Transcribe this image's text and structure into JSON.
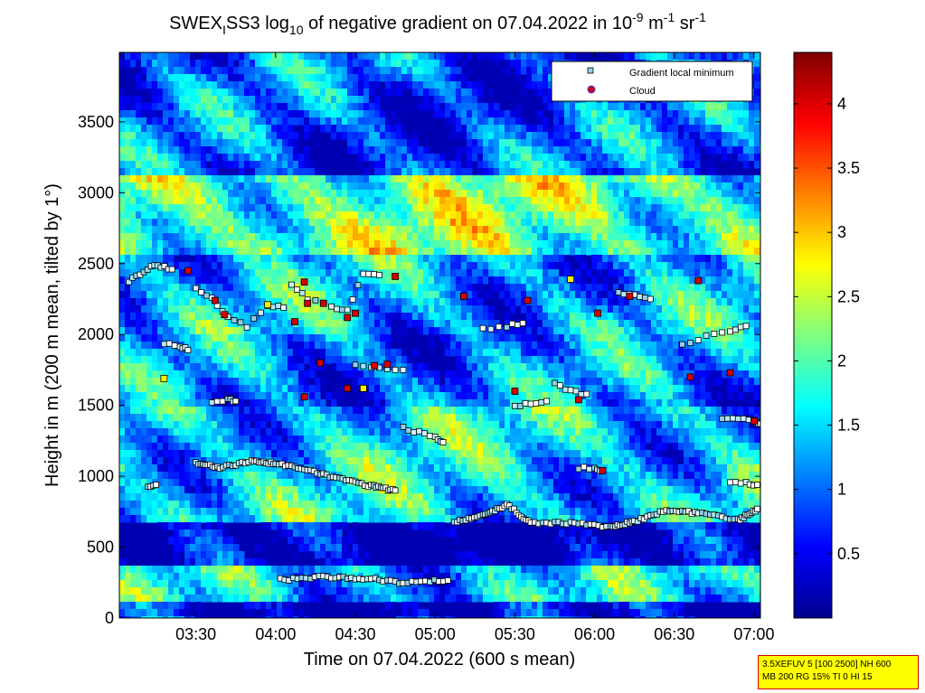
{
  "chart_data": {
    "type": "heatmap",
    "title_parts": {
      "a": "SWEX",
      "a_sub": "I",
      "b": "SS3 log",
      "b_sub": "10",
      "c": " of negative gradient on 07.04.2022 in 10",
      "c_sup1": "-9",
      "d": " m",
      "d_sup": "-1",
      "e": " sr",
      "e_sup": "-1"
    },
    "xlabel": "Time on 07.04.2022 (600 s mean)",
    "ylabel": "Height in m (200 m mean, tilted by 1°)",
    "xticks": [
      {
        "v": 3.5,
        "label": "03:30"
      },
      {
        "v": 4.0,
        "label": "04:00"
      },
      {
        "v": 4.5,
        "label": "04:30"
      },
      {
        "v": 5.0,
        "label": "05:00"
      },
      {
        "v": 5.5,
        "label": "05:30"
      },
      {
        "v": 6.0,
        "label": "06:00"
      },
      {
        "v": 6.5,
        "label": "06:30"
      },
      {
        "v": 7.0,
        "label": "07:00"
      }
    ],
    "yticks": [
      {
        "v": 0,
        "label": "0"
      },
      {
        "v": 500,
        "label": "500"
      },
      {
        "v": 1000,
        "label": "1000"
      },
      {
        "v": 1500,
        "label": "1500"
      },
      {
        "v": 2000,
        "label": "2000"
      },
      {
        "v": 2500,
        "label": "2500"
      },
      {
        "v": 3000,
        "label": "3000"
      },
      {
        "v": 3500,
        "label": "3500"
      }
    ],
    "xlim": [
      3.02,
      7.04
    ],
    "ylim": [
      0,
      3990
    ],
    "colorbar": {
      "ticks": [
        {
          "v": 0.5,
          "label": "0.5"
        },
        {
          "v": 1,
          "label": "1"
        },
        {
          "v": 1.5,
          "label": "1.5"
        },
        {
          "v": 2,
          "label": "2"
        },
        {
          "v": 2.5,
          "label": "2.5"
        },
        {
          "v": 3,
          "label": "3"
        },
        {
          "v": 3.5,
          "label": "3.5"
        },
        {
          "v": 4,
          "label": "4"
        }
      ],
      "range": [
        0.0,
        4.4
      ],
      "colormap": "jet"
    },
    "legend": {
      "placement": "top-right",
      "entries": [
        {
          "label": "Gradient local minimum",
          "marker": "square",
          "color": "#8fd0e8"
        },
        {
          "label": "Cloud",
          "marker": "circle",
          "color": "#d40000"
        }
      ]
    },
    "field_description": {
      "layers": [
        {
          "h_from": 0,
          "h_to": 140,
          "level": 0.2
        },
        {
          "h_from": 140,
          "h_to": 380,
          "level": 1.4
        },
        {
          "h_from": 380,
          "h_to": 700,
          "level": 0.1
        },
        {
          "h_from": 700,
          "h_to": 1500,
          "level": 1.5
        },
        {
          "h_from": 1500,
          "h_to": 2000,
          "level": 1.1
        },
        {
          "h_from": 2000,
          "h_to": 2550,
          "level": 1.3
        },
        {
          "h_from": 2550,
          "h_to": 3100,
          "level": 2.1
        },
        {
          "h_from": 3100,
          "h_to": 3990,
          "level": 0.9
        }
      ]
    },
    "gradient_minimum_tracks": [
      {
        "x": [
          4.03,
          4.3,
          4.55,
          4.8,
          5.08
        ],
        "y": [
          270,
          290,
          280,
          250,
          265
        ],
        "dense": true
      },
      {
        "x": [
          5.12,
          5.3,
          5.45,
          5.6,
          5.85,
          6.1,
          6.25,
          6.45,
          6.65,
          6.9,
          7.02
        ],
        "y": [
          680,
          720,
          800,
          670,
          670,
          640,
          680,
          760,
          740,
          690,
          770
        ],
        "dense": true
      },
      {
        "x": [
          3.5,
          3.65,
          3.85,
          4.0,
          4.2,
          4.4,
          4.6,
          4.75
        ],
        "y": [
          1090,
          1060,
          1110,
          1090,
          1040,
          980,
          930,
          900
        ],
        "dense": true
      },
      {
        "x": [
          5.9,
          6.0,
          6.05
        ],
        "y": [
          1060,
          1050,
          1040
        ],
        "dense": false
      },
      {
        "x": [
          3.08,
          3.15,
          3.22,
          3.28,
          3.35
        ],
        "y": [
          2380,
          2430,
          2480,
          2480,
          2460
        ],
        "dense": false
      },
      {
        "x": [
          3.5,
          3.6,
          3.7,
          3.82,
          3.95,
          4.05
        ],
        "y": [
          2320,
          2250,
          2130,
          2060,
          2200,
          2190
        ],
        "dense": false
      },
      {
        "x": [
          4.1,
          4.2,
          4.35,
          4.45,
          4.55,
          4.65
        ],
        "y": [
          2360,
          2250,
          2200,
          2170,
          2430,
          2420
        ],
        "dense": false
      },
      {
        "x": [
          3.6,
          3.7,
          3.75
        ],
        "y": [
          1520,
          1540,
          1530
        ],
        "dense": false
      },
      {
        "x": [
          4.5,
          4.65,
          4.8
        ],
        "y": [
          1780,
          1760,
          1750
        ],
        "dense": false
      },
      {
        "x": [
          4.8,
          4.9,
          5.0,
          5.05
        ],
        "y": [
          1340,
          1310,
          1270,
          1240
        ],
        "dense": false
      },
      {
        "x": [
          5.3,
          5.45,
          5.55
        ],
        "y": [
          2040,
          2060,
          2080
        ],
        "dense": false
      },
      {
        "x": [
          5.5,
          5.6,
          5.7
        ],
        "y": [
          1500,
          1510,
          1530
        ],
        "dense": false
      },
      {
        "x": [
          5.75,
          5.85,
          5.95
        ],
        "y": [
          1660,
          1600,
          1580
        ],
        "dense": false
      },
      {
        "x": [
          6.15,
          6.25,
          6.35
        ],
        "y": [
          2300,
          2280,
          2250
        ],
        "dense": false
      },
      {
        "x": [
          6.55,
          6.7,
          6.85,
          6.95
        ],
        "y": [
          1930,
          1990,
          2030,
          2060
        ],
        "dense": false
      },
      {
        "x": [
          6.8,
          6.9,
          7.0,
          7.04
        ],
        "y": [
          1400,
          1410,
          1390,
          1370
        ],
        "dense": false
      },
      {
        "x": [
          6.85,
          6.95,
          7.02
        ],
        "y": [
          960,
          950,
          940
        ],
        "dense": false
      },
      {
        "x": [
          3.3,
          3.4,
          3.45
        ],
        "y": [
          1940,
          1920,
          1890
        ],
        "dense": false
      },
      {
        "x": [
          3.2,
          3.25
        ],
        "y": [
          930,
          940
        ],
        "dense": false
      }
    ],
    "cloud_points": [
      {
        "x": 3.45,
        "y": 2450
      },
      {
        "x": 3.62,
        "y": 2240
      },
      {
        "x": 3.68,
        "y": 2140
      },
      {
        "x": 3.95,
        "y": 2210
      },
      {
        "x": 4.12,
        "y": 2090
      },
      {
        "x": 4.18,
        "y": 2370
      },
      {
        "x": 4.28,
        "y": 1800
      },
      {
        "x": 4.3,
        "y": 2220
      },
      {
        "x": 4.45,
        "y": 2120
      },
      {
        "x": 4.5,
        "y": 2150
      },
      {
        "x": 4.55,
        "y": 1620
      },
      {
        "x": 4.62,
        "y": 1780
      },
      {
        "x": 4.7,
        "y": 1790
      },
      {
        "x": 4.75,
        "y": 2410
      },
      {
        "x": 4.18,
        "y": 1560
      },
      {
        "x": 5.5,
        "y": 1600
      },
      {
        "x": 5.58,
        "y": 2240
      },
      {
        "x": 5.85,
        "y": 2390
      },
      {
        "x": 5.9,
        "y": 1540
      },
      {
        "x": 6.02,
        "y": 2150
      },
      {
        "x": 6.22,
        "y": 2270
      },
      {
        "x": 6.6,
        "y": 1700
      },
      {
        "x": 6.85,
        "y": 1730
      },
      {
        "x": 7.0,
        "y": 1390
      },
      {
        "x": 3.3,
        "y": 1690
      },
      {
        "x": 4.45,
        "y": 1620
      },
      {
        "x": 4.2,
        "y": 2220
      },
      {
        "x": 6.65,
        "y": 2380
      },
      {
        "x": 5.18,
        "y": 2270
      },
      {
        "x": 6.05,
        "y": 1040
      }
    ]
  },
  "info_box": {
    "line1": "3.5XEFUV 5 [100 2500] NH 600",
    "line2": "MB 200 RG 15% TI 0 HI 15"
  }
}
